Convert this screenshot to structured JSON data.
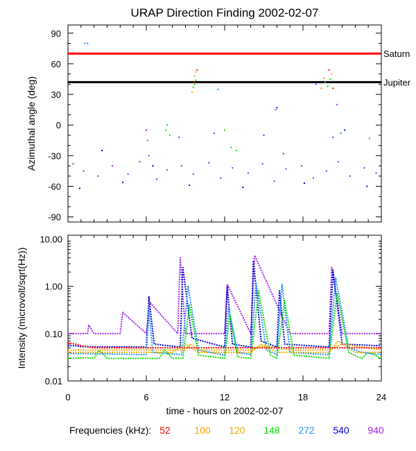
{
  "chart_data": [
    {
      "type": "scatter",
      "title": "URAP Direction Finding  2002-02-07",
      "ylabel": "Azimuthal angle (deg)",
      "xlim": [
        0,
        24
      ],
      "ylim": [
        -95,
        98
      ],
      "yticks": [
        90,
        60,
        30,
        0,
        -30,
        -60,
        -90
      ],
      "reference_lines": [
        {
          "name": "Saturn",
          "y": 70,
          "color": "#ff0000"
        },
        {
          "name": "Jupiter",
          "y": 42,
          "color": "#000000"
        }
      ],
      "series": [
        {
          "frequency_khz": 940,
          "color": "#a020f0",
          "points": [
            [
              0.4,
              -38
            ],
            [
              1.2,
              -45
            ],
            [
              2.3,
              -50
            ],
            [
              3.4,
              -40
            ],
            [
              4.6,
              -48
            ],
            [
              5.5,
              -36
            ],
            [
              6.2,
              -30
            ],
            [
              6.8,
              -53
            ],
            [
              7.6,
              -44
            ],
            [
              8.7,
              -40
            ],
            [
              9.6,
              -48
            ],
            [
              10.8,
              -37
            ],
            [
              11.7,
              -52
            ],
            [
              12.6,
              -42
            ],
            [
              13.8,
              -47
            ],
            [
              14.9,
              -38
            ],
            [
              15.8,
              -55
            ],
            [
              16.7,
              -43
            ],
            [
              17.9,
              -40
            ],
            [
              18.8,
              -52
            ],
            [
              19.8,
              -45
            ],
            [
              20.7,
              -36
            ],
            [
              21.6,
              -50
            ],
            [
              22.7,
              -42
            ],
            [
              23.6,
              -47
            ],
            [
              6.0,
              -5
            ],
            [
              8.5,
              -12
            ],
            [
              11.2,
              -8
            ],
            [
              15.0,
              -10
            ],
            [
              16.5,
              -28
            ],
            [
              20.3,
              -12
            ],
            [
              20.6,
              20
            ],
            [
              19.0,
              40
            ]
          ]
        },
        {
          "frequency_khz": 540,
          "color": "#0000cd",
          "points": [
            [
              0.9,
              -62
            ],
            [
              4.2,
              -56
            ],
            [
              9.3,
              -59
            ],
            [
              13.4,
              -61
            ],
            [
              18.1,
              -57
            ],
            [
              22.9,
              -60
            ],
            [
              2.6,
              -25
            ],
            [
              16.0,
              17
            ],
            [
              21.2,
              -5
            ],
            [
              6.5,
              -40
            ]
          ]
        },
        {
          "frequency_khz": 272,
          "color": "#1e90ff",
          "points": [
            [
              1.3,
              80
            ],
            [
              1.5,
              80
            ],
            [
              6.1,
              -15
            ],
            [
              15.9,
              15
            ],
            [
              20.9,
              -8
            ],
            [
              11.5,
              35
            ]
          ]
        },
        {
          "frequency_khz": 148,
          "color": "#00e000",
          "points": [
            [
              7.5,
              -5
            ],
            [
              7.8,
              -10
            ],
            [
              7.6,
              0
            ],
            [
              9.7,
              40
            ],
            [
              9.8,
              44
            ],
            [
              9.6,
              37
            ],
            [
              12.0,
              -5
            ],
            [
              12.5,
              -22
            ],
            [
              12.9,
              -25
            ],
            [
              19.7,
              42
            ],
            [
              19.9,
              38
            ],
            [
              20.1,
              45
            ],
            [
              23.1,
              -13
            ]
          ]
        },
        {
          "frequency_khz": 120,
          "color": "#e0b000",
          "points": [
            [
              9.7,
              48
            ],
            [
              19.6,
              46
            ]
          ]
        },
        {
          "frequency_khz": 100,
          "color": "#ffa500",
          "points": [
            [
              9.8,
              52
            ],
            [
              9.5,
              32
            ],
            [
              20.2,
              50
            ],
            [
              19.4,
              36
            ]
          ]
        },
        {
          "frequency_khz": 52,
          "color": "#ff0000",
          "points": [
            [
              9.9,
              54
            ],
            [
              9.7,
              42
            ],
            [
              20.0,
              54
            ],
            [
              20.3,
              36
            ]
          ]
        }
      ]
    },
    {
      "type": "line",
      "xlabel": "time - hours on 2002-02-07",
      "ylabel": "Intensity (microvolt/sqrt(Hz))",
      "xlim": [
        0,
        24
      ],
      "ylim": [
        0.01,
        12
      ],
      "yscale": "log",
      "xticks": [
        "0",
        "6",
        "12",
        "18",
        "24"
      ],
      "yticks": [
        "10.00",
        "1.00",
        "0.10",
        "0.01"
      ],
      "series": [
        {
          "frequency_khz": 940,
          "color": "#a020f0",
          "x": [
            0,
            1.5,
            1.6,
            2,
            4,
            4.2,
            6,
            6.3,
            8.4,
            8.6,
            9,
            12,
            12.2,
            14,
            14.3,
            17,
            18,
            20,
            20.2,
            21,
            24
          ],
          "y": [
            0.1,
            0.1,
            0.15,
            0.1,
            0.1,
            0.28,
            0.1,
            0.45,
            0.1,
            4,
            0.1,
            0.1,
            1.1,
            0.1,
            4.5,
            0.1,
            0.1,
            0.1,
            2.5,
            0.1,
            0.1
          ]
        },
        {
          "frequency_khz": 540,
          "color": "#0000cd",
          "x": [
            0,
            0.5,
            1,
            6,
            6.2,
            6.6,
            8.6,
            8.8,
            9.5,
            12,
            12.2,
            12.6,
            14,
            14.2,
            14.8,
            16,
            16.2,
            16.6,
            20,
            20.3,
            21,
            24
          ],
          "y": [
            0.055,
            0.056,
            0.053,
            0.052,
            0.6,
            0.06,
            0.052,
            2.5,
            0.08,
            0.052,
            1.0,
            0.06,
            0.052,
            3.5,
            0.07,
            0.052,
            0.8,
            0.06,
            0.052,
            2.2,
            0.06,
            0.055
          ]
        },
        {
          "frequency_khz": 272,
          "color": "#1e90ff",
          "x": [
            0,
            1,
            6,
            6.2,
            6.5,
            8.7,
            9.2,
            10,
            12,
            12.3,
            13,
            14,
            14.4,
            15.2,
            16,
            16.4,
            17,
            20,
            20.5,
            21.5,
            22.5,
            24
          ],
          "y": [
            0.038,
            0.038,
            0.036,
            0.3,
            0.04,
            0.036,
            1.0,
            0.045,
            0.035,
            0.35,
            0.04,
            0.036,
            1.2,
            0.045,
            0.036,
            1.1,
            0.04,
            0.036,
            1.5,
            0.05,
            0.04,
            0.036
          ]
        },
        {
          "frequency_khz": 148,
          "color": "#00e000",
          "x": [
            0,
            1,
            2,
            2.4,
            3,
            7,
            7.4,
            8,
            8.8,
            9.3,
            10,
            12,
            12.4,
            13,
            14,
            14.6,
            15.5,
            16,
            16.6,
            17.3,
            20,
            20.6,
            21.5,
            22.5,
            23,
            24
          ],
          "y": [
            0.03,
            0.031,
            0.03,
            0.045,
            0.03,
            0.03,
            0.045,
            0.03,
            0.03,
            0.4,
            0.035,
            0.03,
            0.25,
            0.032,
            0.03,
            0.8,
            0.035,
            0.03,
            0.5,
            0.035,
            0.03,
            0.7,
            0.04,
            0.03,
            0.04,
            0.03
          ]
        },
        {
          "frequency_khz": 120,
          "color": "#e0b000",
          "x": [
            0,
            2,
            6,
            8,
            9,
            10,
            12,
            14,
            14.8,
            16,
            18,
            20,
            20.7,
            22,
            24
          ],
          "y": [
            0.04,
            0.04,
            0.04,
            0.04,
            0.06,
            0.04,
            0.04,
            0.04,
            0.06,
            0.04,
            0.04,
            0.04,
            0.07,
            0.04,
            0.04
          ]
        },
        {
          "frequency_khz": 100,
          "color": "#ffa500",
          "x": [
            0,
            3,
            6,
            9,
            9.4,
            10,
            12,
            14,
            15,
            17,
            18,
            20,
            21,
            24
          ],
          "y": [
            0.045,
            0.045,
            0.045,
            0.045,
            0.06,
            0.045,
            0.045,
            0.045,
            0.055,
            0.045,
            0.045,
            0.045,
            0.06,
            0.045
          ]
        },
        {
          "frequency_khz": 52,
          "color": "#ff0000",
          "x": [
            0,
            0.6,
            1,
            2,
            4,
            6,
            8,
            10,
            12,
            14,
            16,
            18,
            20,
            22,
            24
          ],
          "y": [
            0.064,
            0.06,
            0.055,
            0.05,
            0.05,
            0.05,
            0.05,
            0.05,
            0.05,
            0.05,
            0.05,
            0.05,
            0.05,
            0.05,
            0.05
          ]
        }
      ]
    }
  ],
  "legend": {
    "label": "Frequencies (kHz):",
    "items": [
      {
        "text": "52",
        "color": "#ff0000"
      },
      {
        "text": "100",
        "color": "#ffa500"
      },
      {
        "text": "120",
        "color": "#e0b000"
      },
      {
        "text": "148",
        "color": "#00e000"
      },
      {
        "text": "272",
        "color": "#1e90ff"
      },
      {
        "text": "540",
        "color": "#0000cd"
      },
      {
        "text": "940",
        "color": "#a020f0"
      }
    ]
  }
}
